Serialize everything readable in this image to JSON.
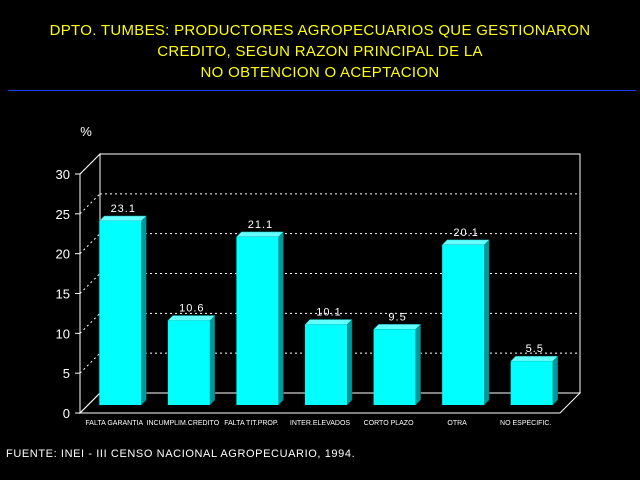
{
  "title_lines": [
    "DPTO. TUMBES: PRODUCTORES AGROPECUARIOS QUE GESTIONARON",
    "CREDITO, SEGUN RAZON PRINCIPAL DE LA",
    "NO OBTENCION O ACEPTACION"
  ],
  "source": "FUENTE: INEI - III CENSO NACIONAL AGROPECUARIO, 1994.",
  "colors": {
    "title": "#ffff00",
    "bar": "#00ffff",
    "text": "#ffffff",
    "background": "#000000",
    "rule": "#1a3cff"
  },
  "chart_data": {
    "type": "bar",
    "ylabel": "%",
    "ylim": [
      0,
      30
    ],
    "yticks": [
      0,
      5,
      10,
      15,
      20,
      25,
      30
    ],
    "grid": true,
    "categories": [
      "FALTA GARANTIA",
      "INCUMPLIM.CREDITO",
      "FALTA TIT.PROP.",
      "INTER.ELEVADOS",
      "CORTO PLAZO",
      "OTRA",
      "NO ESPECIFIC."
    ],
    "values": [
      23.1,
      10.6,
      21.1,
      10.1,
      9.5,
      20.1,
      5.5
    ],
    "value_labels": [
      "23.1",
      "10.6",
      "21.1",
      "10.1",
      "9.5",
      "20.1",
      "5.5"
    ]
  }
}
